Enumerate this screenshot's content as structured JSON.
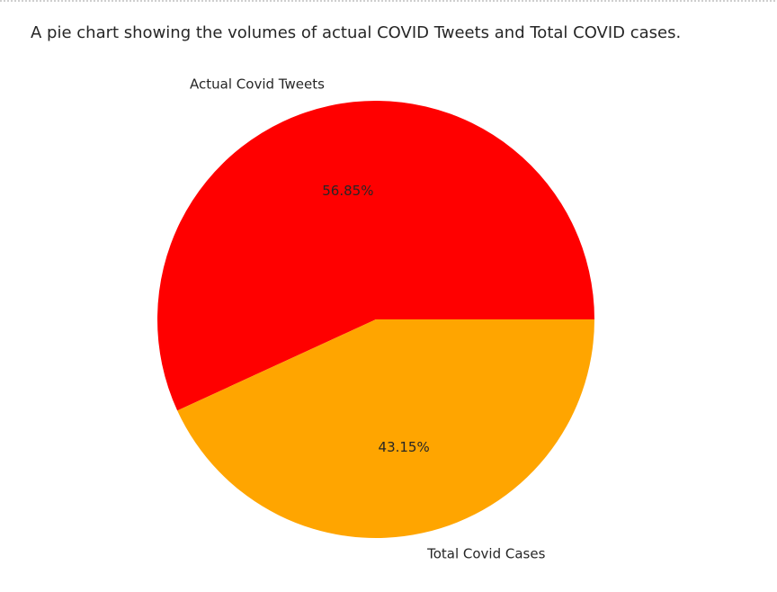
{
  "chart_data": {
    "type": "pie",
    "title": "A pie chart showing the volumes of actual COVID Tweets and Total COVID cases.",
    "slices": [
      {
        "label": "Actual Covid Tweets",
        "percent": 56.85,
        "percent_label": "56.85%",
        "color": "#ff0000"
      },
      {
        "label": "Total Covid Cases",
        "percent": 43.15,
        "percent_label": "43.15%",
        "color": "#ffa500"
      }
    ],
    "start_angle_deg": 0,
    "direction": "counterclockwise"
  }
}
